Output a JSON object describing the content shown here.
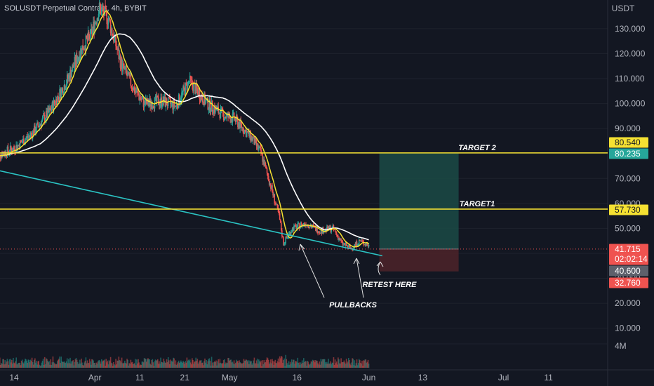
{
  "header": {
    "title": "SOLUSDT Perpetual Contract, 4h, BYBIT"
  },
  "colors": {
    "background": "#131722",
    "up": "#26a69a",
    "down": "#ef5350",
    "fast_ma": "#f5e132",
    "slow_ma": "#ffffff",
    "trendline": "#2bc4c4",
    "hline": "#f5e132",
    "profit_zone": "#1b4a45",
    "loss_zone": "#4a2229"
  },
  "chart_data": {
    "type": "candlestick",
    "y_unit": "USDT",
    "ylim": [
      0,
      140
    ],
    "y_ticks": [
      10,
      20,
      30,
      40,
      50,
      60,
      70,
      80,
      90,
      100,
      110,
      120,
      130
    ],
    "y_tick_labels": [
      "10.000",
      "20.000",
      "30.000",
      "40.000",
      "50.000",
      "60.000",
      "70.000",
      "80.000",
      "90.000",
      "100.000",
      "110.000",
      "120.000",
      "130.000"
    ],
    "x_ticks": [
      "14",
      "Apr",
      "11",
      "21",
      "May",
      "16",
      "Jun",
      "13",
      "Jul",
      "11"
    ],
    "price_anchors": [
      [
        "Mar 10",
        79
      ],
      [
        "Mar 14",
        82
      ],
      [
        "Mar 18",
        88
      ],
      [
        "Mar 22",
        97
      ],
      [
        "Mar 26",
        110
      ],
      [
        "Mar 29",
        122
      ],
      [
        "Mar 31",
        127
      ],
      [
        "Apr 2",
        138
      ],
      [
        "Apr 4",
        134
      ],
      [
        "Apr 7",
        115
      ],
      [
        "Apr 10",
        105
      ],
      [
        "Apr 12",
        100
      ],
      [
        "Apr 16",
        101
      ],
      [
        "Apr 19",
        99
      ],
      [
        "Apr 22",
        109
      ],
      [
        "Apr 26",
        100
      ],
      [
        "Apr 30",
        95
      ],
      [
        "May 2",
        94
      ],
      [
        "May 4",
        90
      ],
      [
        "May 6",
        86
      ],
      [
        "May 8",
        80
      ],
      [
        "May 10",
        68
      ],
      [
        "May 12",
        55
      ],
      [
        "May 13",
        44
      ],
      [
        "May 15",
        50
      ],
      [
        "May 18",
        52
      ],
      [
        "May 21",
        49
      ],
      [
        "May 24",
        50
      ],
      [
        "May 26",
        44
      ],
      [
        "May 28",
        42
      ],
      [
        "May 30",
        45
      ],
      [
        "Jun 1",
        43
      ]
    ],
    "overlays": {
      "fast_ma": "yellow moving average",
      "slow_ma": "white moving average",
      "trendline": {
        "from": [
          "Mar 6",
          75
        ],
        "to": [
          "Jun 4",
          39
        ]
      }
    },
    "horizontal_lines": [
      {
        "price": 80.235,
        "label": "TARGET 2"
      },
      {
        "price": 57.73,
        "label": "TARGET1"
      }
    ],
    "position_box": {
      "x_start": "Jun 1",
      "x_end": "Jun 21",
      "entry": 41.715,
      "target": 80.235,
      "stop": 32.76
    },
    "price_tags": [
      {
        "value": "80.540",
        "bg": "#f5e132",
        "fg": "#131722"
      },
      {
        "value": "80.235",
        "bg": "#26a69a",
        "fg": "#ffffff"
      },
      {
        "value": "57.730",
        "bg": "#f5e132",
        "fg": "#131722"
      },
      {
        "value": "41.715",
        "sub": "02:02:14",
        "bg": "#ef5350",
        "fg": "#ffffff"
      },
      {
        "value": "40.600",
        "bg": "#5d606b",
        "fg": "#ffffff"
      },
      {
        "value": "32.760",
        "bg": "#ef5350",
        "fg": "#ffffff"
      }
    ],
    "annotations": [
      {
        "text": "PULLBACKS"
      },
      {
        "text": "RETEST HERE"
      }
    ],
    "volume_axis_label": "4M"
  }
}
